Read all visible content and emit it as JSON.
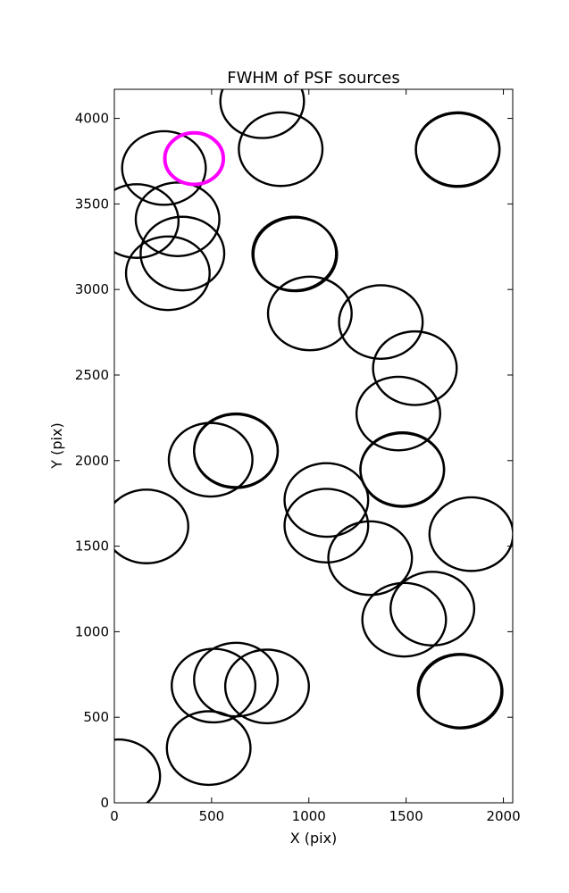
{
  "chart_data": {
    "type": "scatter",
    "title": "FWHM of PSF sources",
    "xlabel": "X (pix)",
    "ylabel": "Y (pix)",
    "xlim": [
      0,
      2048
    ],
    "ylim": [
      0,
      4170
    ],
    "xticks": [
      0,
      500,
      1000,
      1500,
      2000
    ],
    "yticks": [
      0,
      500,
      1000,
      1500,
      2000,
      2500,
      3000,
      3500,
      4000
    ],
    "grid": false,
    "legend": "none",
    "marker": "open circle",
    "circle_radius": 215,
    "colors": {
      "default": "#000000",
      "highlight": "#ff00ff"
    },
    "sources": [
      {
        "x": 760,
        "y": 4100,
        "highlight": false
      },
      {
        "x": 855,
        "y": 3820,
        "highlight": false
      },
      {
        "x": 1765,
        "y": 3820,
        "highlight": false
      },
      {
        "x": 1765,
        "y": 3815,
        "highlight": false
      },
      {
        "x": 255,
        "y": 3710,
        "highlight": false
      },
      {
        "x": 410,
        "y": 3765,
        "highlight": true
      },
      {
        "x": 115,
        "y": 3400,
        "highlight": false
      },
      {
        "x": 325,
        "y": 3410,
        "highlight": false
      },
      {
        "x": 350,
        "y": 3210,
        "highlight": false
      },
      {
        "x": 275,
        "y": 3095,
        "highlight": false
      },
      {
        "x": 925,
        "y": 3210,
        "highlight": false
      },
      {
        "x": 930,
        "y": 3205,
        "highlight": false
      },
      {
        "x": 1005,
        "y": 2860,
        "highlight": false
      },
      {
        "x": 1370,
        "y": 2810,
        "highlight": false
      },
      {
        "x": 1545,
        "y": 2540,
        "highlight": false
      },
      {
        "x": 1460,
        "y": 2275,
        "highlight": false
      },
      {
        "x": 625,
        "y": 2060,
        "highlight": false
      },
      {
        "x": 625,
        "y": 2055,
        "highlight": false
      },
      {
        "x": 495,
        "y": 2005,
        "highlight": false
      },
      {
        "x": 1480,
        "y": 1950,
        "highlight": false
      },
      {
        "x": 1480,
        "y": 1945,
        "highlight": false
      },
      {
        "x": 1090,
        "y": 1770,
        "highlight": false
      },
      {
        "x": 1090,
        "y": 1620,
        "highlight": false
      },
      {
        "x": 165,
        "y": 1615,
        "highlight": false
      },
      {
        "x": 1835,
        "y": 1570,
        "highlight": false
      },
      {
        "x": 1315,
        "y": 1430,
        "highlight": false
      },
      {
        "x": 1635,
        "y": 1135,
        "highlight": false
      },
      {
        "x": 1490,
        "y": 1070,
        "highlight": false
      },
      {
        "x": 625,
        "y": 720,
        "highlight": false
      },
      {
        "x": 510,
        "y": 685,
        "highlight": false
      },
      {
        "x": 785,
        "y": 680,
        "highlight": false
      },
      {
        "x": 1775,
        "y": 655,
        "highlight": false
      },
      {
        "x": 1780,
        "y": 650,
        "highlight": false
      },
      {
        "x": 485,
        "y": 320,
        "highlight": false
      },
      {
        "x": 20,
        "y": 155,
        "highlight": false
      }
    ]
  }
}
